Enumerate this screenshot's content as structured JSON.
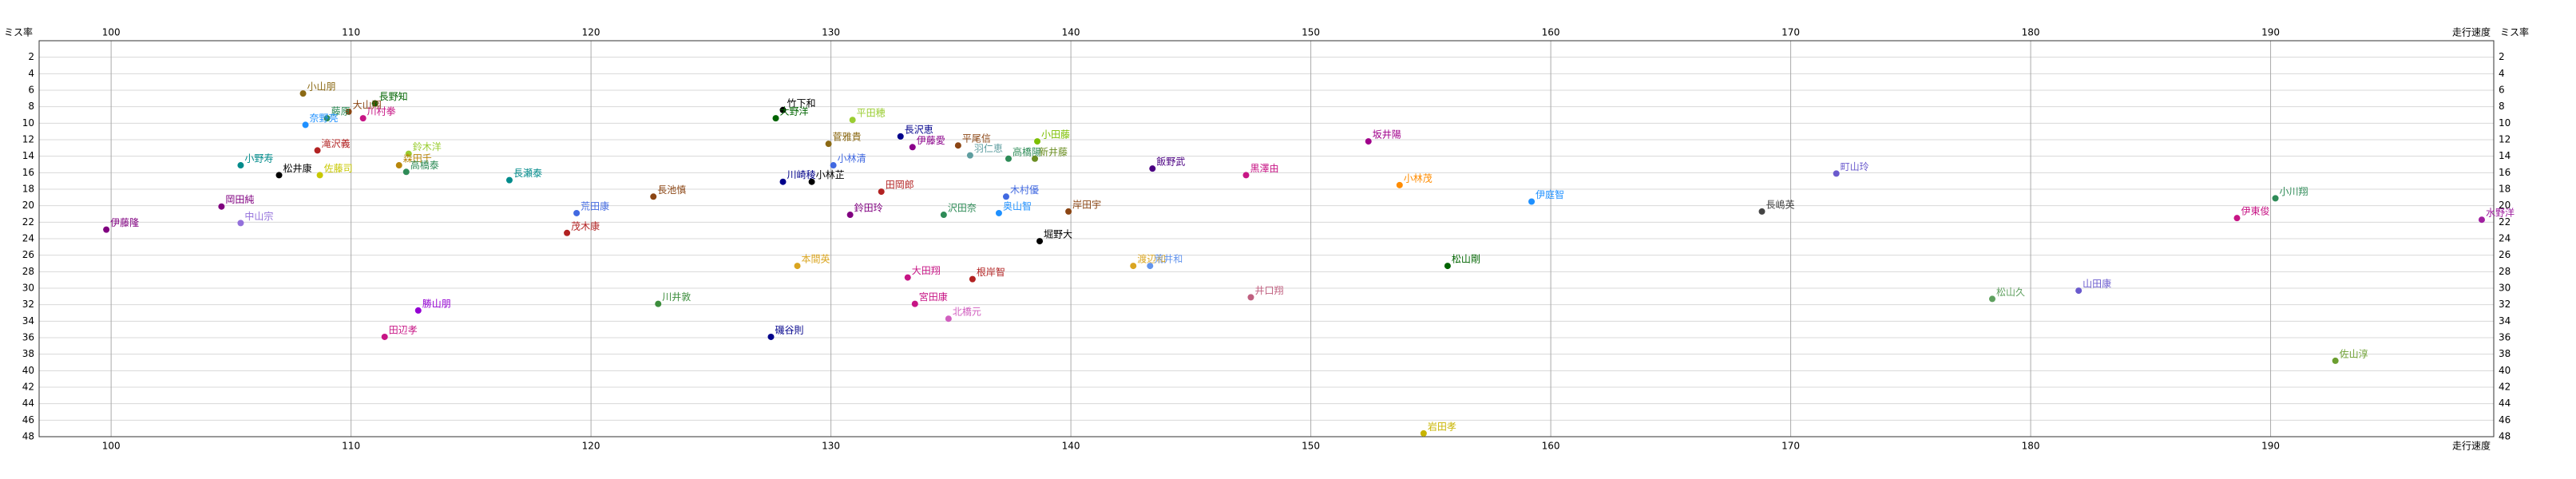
{
  "chart_data": {
    "type": "scatter",
    "x_label": "走行速度",
    "y_label": "ミス率",
    "xlim": [
      97,
      199.3
    ],
    "xticks": [
      100,
      110,
      120,
      130,
      140,
      150,
      160,
      170,
      180,
      190
    ],
    "ylim": [
      0,
      48
    ],
    "yticks": [
      2,
      4,
      6,
      8,
      10,
      12,
      14,
      16,
      18,
      20,
      22,
      24,
      26,
      28,
      30,
      32,
      34,
      36,
      38,
      40,
      42,
      44,
      46,
      48
    ],
    "y_inverted": true,
    "grid": true,
    "labels": [
      "小山朋",
      "長野知",
      "大山翔",
      "藤原",
      "川村拳",
      "奈野亮",
      "滝沢義",
      "小野寿",
      "松井康",
      "佐藤司",
      "鈴木洋",
      "森田千",
      "高橋泰",
      "長瀬泰",
      "岡田純",
      "中山宗",
      "伊藤隆",
      "長池慎",
      "荒田康",
      "茂木康",
      "竹下和",
      "大野洋",
      "平田穂",
      "菅雅貴",
      "小林清",
      "川崎稜",
      "小林芷",
      "長沢恵",
      "伊藤愛",
      "平尾信",
      "羽仁恵",
      "小田藤",
      "高橋陽",
      "新井藤",
      "田岡郎",
      "鈴田玲",
      "沢田奈",
      "木村優",
      "奥山智",
      "岸田宇",
      "堀野大",
      "本間英",
      "大田翔",
      "根岸智",
      "宮田康",
      "北橋元",
      "川井敦",
      "磯谷則",
      "勝山朋",
      "田辺孝",
      "渡辺和",
      "荒井和",
      "飯野武",
      "黒澤由",
      "坂井陽",
      "小林茂",
      "伊庭智",
      "松山剛",
      "井口翔",
      "岩田孝",
      "長嶋英",
      "町山玲",
      "伊東俊",
      "小川翔",
      "水野洋",
      "山田康",
      "松山久",
      "佐山淳"
    ],
    "x": [
      108.0,
      111.0,
      109.9,
      109.0,
      110.5,
      108.1,
      108.6,
      105.4,
      107.0,
      108.7,
      112.4,
      112.0,
      112.3,
      116.6,
      104.6,
      105.4,
      99.8,
      122.6,
      119.4,
      119.0,
      128.0,
      127.7,
      130.9,
      129.9,
      130.1,
      128.0,
      129.2,
      132.9,
      133.4,
      135.3,
      135.8,
      138.6,
      137.4,
      138.5,
      132.1,
      130.8,
      134.7,
      137.3,
      137.0,
      139.9,
      138.7,
      128.6,
      133.2,
      135.9,
      133.5,
      134.9,
      122.8,
      127.5,
      112.8,
      111.4,
      142.6,
      143.3,
      143.4,
      147.3,
      152.4,
      153.7,
      159.2,
      155.7,
      147.5,
      154.7,
      168.8,
      171.9,
      188.6,
      190.2,
      198.8,
      182.0,
      178.4,
      192.7
    ],
    "values": [
      6.4,
      7.6,
      8.6,
      9.4,
      9.4,
      10.2,
      13.3,
      15.1,
      16.3,
      16.3,
      13.7,
      15.1,
      15.9,
      16.9,
      20.1,
      22.1,
      22.9,
      18.9,
      20.9,
      23.3,
      8.4,
      9.4,
      9.6,
      12.5,
      15.1,
      17.1,
      17.1,
      11.6,
      12.9,
      12.7,
      13.9,
      12.2,
      14.3,
      14.3,
      18.3,
      21.1,
      21.1,
      18.9,
      20.9,
      20.7,
      24.3,
      27.3,
      28.7,
      28.9,
      31.9,
      33.7,
      31.9,
      35.9,
      32.7,
      35.9,
      27.3,
      27.3,
      15.5,
      16.3,
      12.2,
      17.5,
      19.5,
      27.3,
      31.1,
      47.6,
      20.7,
      16.1,
      21.5,
      19.1,
      21.7,
      30.3,
      31.3,
      38.8
    ],
    "colors": [
      "#8b6914",
      "#006400",
      "#8b4513",
      "#2e8b57",
      "#c71585",
      "#1e90ff",
      "#b22222",
      "#008b8b",
      "#000000",
      "#c8c800",
      "#9acd32",
      "#b8860b",
      "#2e8b57",
      "#008b8b",
      "#800080",
      "#9370db",
      "#800080",
      "#8b4513",
      "#4169e1",
      "#b22222",
      "#000000",
      "#006400",
      "#9acd32",
      "#8b6914",
      "#4169e1",
      "#00008b",
      "#000000",
      "#00008b",
      "#8b008b",
      "#8b4513",
      "#5f9ea0",
      "#7cbf00",
      "#2e8b57",
      "#6b8e23",
      "#b22222",
      "#800080",
      "#2e8b57",
      "#4169e1",
      "#1e90ff",
      "#8b4513",
      "#000000",
      "#daa520",
      "#c71585",
      "#b22222",
      "#c71585",
      "#d15fbf",
      "#3c8d3c",
      "#00008b",
      "#9400d3",
      "#c71585",
      "#daa520",
      "#6495ed",
      "#4b0082",
      "#c71585",
      "#a0008b",
      "#ff8c00",
      "#1e90ff",
      "#006400",
      "#c06080",
      "#c8b400",
      "#444444",
      "#6a5acd",
      "#c71585",
      "#2e8b57",
      "#a020a0",
      "#6a5acd",
      "#5fa05f",
      "#6b9e2f"
    ]
  }
}
